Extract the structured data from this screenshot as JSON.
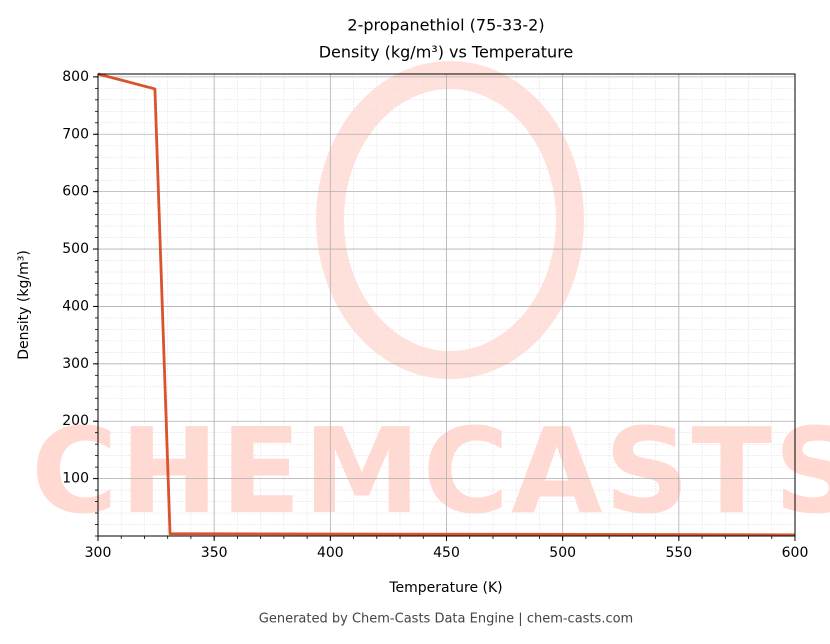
{
  "chart_data": {
    "type": "line",
    "title": "2-propanethiol (75-33-2)",
    "subtitle": "Density (kg/m³) vs Temperature",
    "x_label": "Temperature (K)",
    "y_label": "Density (kg/m³)",
    "x": [
      300,
      324.5,
      331,
      600
    ],
    "series": [
      {
        "name": "Density",
        "color": "#d9532b",
        "values": [
          805,
          779,
          4,
          2
        ]
      }
    ],
    "xlim": [
      300,
      600
    ],
    "xticks": [
      300,
      350,
      400,
      450,
      500,
      550,
      600
    ],
    "ylim": [
      0,
      805
    ],
    "yticks": [
      100,
      200,
      300,
      400,
      500,
      600,
      700,
      800
    ],
    "grid": true,
    "minor_grid": true,
    "legend": false,
    "watermark": "CHEMCASTS",
    "footer": "Generated by Chem-Casts Data Engine | chem-casts.com"
  }
}
